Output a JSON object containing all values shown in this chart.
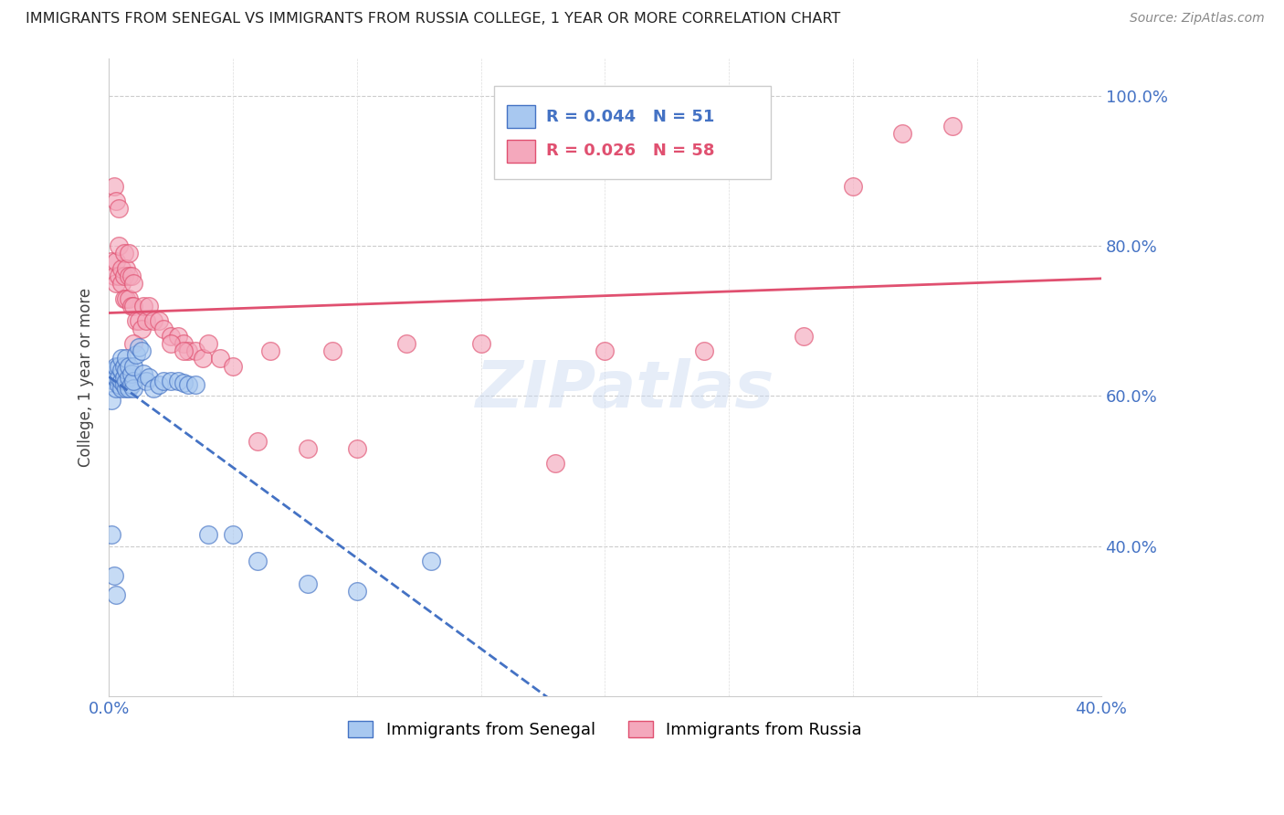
{
  "title": "IMMIGRANTS FROM SENEGAL VS IMMIGRANTS FROM RUSSIA COLLEGE, 1 YEAR OR MORE CORRELATION CHART",
  "source": "Source: ZipAtlas.com",
  "ylabel": "College, 1 year or more",
  "xmin": 0.0,
  "xmax": 0.4,
  "ymin": 0.2,
  "ymax": 1.05,
  "ytick_labels": [
    "40.0%",
    "60.0%",
    "80.0%",
    "100.0%"
  ],
  "ytick_values": [
    0.4,
    0.6,
    0.8,
    1.0
  ],
  "legend_r_senegal": "0.044",
  "legend_n_senegal": "51",
  "legend_r_russia": "0.026",
  "legend_n_russia": "58",
  "color_senegal": "#a8c8f0",
  "color_russia": "#f4a8bc",
  "color_senegal_line": "#4472c4",
  "color_russia_line": "#e05070",
  "color_title": "#222222",
  "color_right_axis": "#4472c4",
  "color_bottom_axis": "#4472c4",
  "watermark": "ZIPatlas",
  "senegal_x": [
    0.001,
    0.002,
    0.002,
    0.003,
    0.003,
    0.003,
    0.004,
    0.004,
    0.004,
    0.005,
    0.005,
    0.005,
    0.005,
    0.006,
    0.006,
    0.006,
    0.007,
    0.007,
    0.007,
    0.007,
    0.008,
    0.008,
    0.008,
    0.009,
    0.009,
    0.01,
    0.01,
    0.01,
    0.011,
    0.012,
    0.013,
    0.014,
    0.015,
    0.016,
    0.018,
    0.02,
    0.022,
    0.025,
    0.028,
    0.03,
    0.032,
    0.035,
    0.04,
    0.05,
    0.06,
    0.08,
    0.1,
    0.13,
    0.001,
    0.002,
    0.003
  ],
  "senegal_y": [
    0.595,
    0.62,
    0.635,
    0.61,
    0.625,
    0.64,
    0.615,
    0.625,
    0.64,
    0.61,
    0.62,
    0.635,
    0.65,
    0.615,
    0.625,
    0.64,
    0.61,
    0.62,
    0.635,
    0.65,
    0.61,
    0.625,
    0.64,
    0.615,
    0.63,
    0.61,
    0.62,
    0.64,
    0.655,
    0.665,
    0.66,
    0.63,
    0.62,
    0.625,
    0.61,
    0.615,
    0.62,
    0.62,
    0.62,
    0.618,
    0.615,
    0.615,
    0.415,
    0.415,
    0.38,
    0.35,
    0.34,
    0.38,
    0.415,
    0.36,
    0.335
  ],
  "russia_x": [
    0.001,
    0.002,
    0.003,
    0.003,
    0.004,
    0.004,
    0.005,
    0.005,
    0.006,
    0.006,
    0.006,
    0.007,
    0.007,
    0.008,
    0.008,
    0.008,
    0.009,
    0.009,
    0.01,
    0.01,
    0.011,
    0.012,
    0.013,
    0.014,
    0.015,
    0.016,
    0.018,
    0.02,
    0.022,
    0.025,
    0.028,
    0.03,
    0.032,
    0.035,
    0.038,
    0.04,
    0.045,
    0.05,
    0.06,
    0.065,
    0.08,
    0.09,
    0.1,
    0.12,
    0.15,
    0.18,
    0.2,
    0.24,
    0.28,
    0.3,
    0.32,
    0.34,
    0.002,
    0.003,
    0.004,
    0.01,
    0.025,
    0.03
  ],
  "russia_y": [
    0.78,
    0.76,
    0.75,
    0.78,
    0.76,
    0.8,
    0.75,
    0.77,
    0.73,
    0.76,
    0.79,
    0.73,
    0.77,
    0.73,
    0.76,
    0.79,
    0.72,
    0.76,
    0.72,
    0.75,
    0.7,
    0.7,
    0.69,
    0.72,
    0.7,
    0.72,
    0.7,
    0.7,
    0.69,
    0.68,
    0.68,
    0.67,
    0.66,
    0.66,
    0.65,
    0.67,
    0.65,
    0.64,
    0.54,
    0.66,
    0.53,
    0.66,
    0.53,
    0.67,
    0.67,
    0.51,
    0.66,
    0.66,
    0.68,
    0.88,
    0.95,
    0.96,
    0.88,
    0.86,
    0.85,
    0.67,
    0.67,
    0.66
  ]
}
